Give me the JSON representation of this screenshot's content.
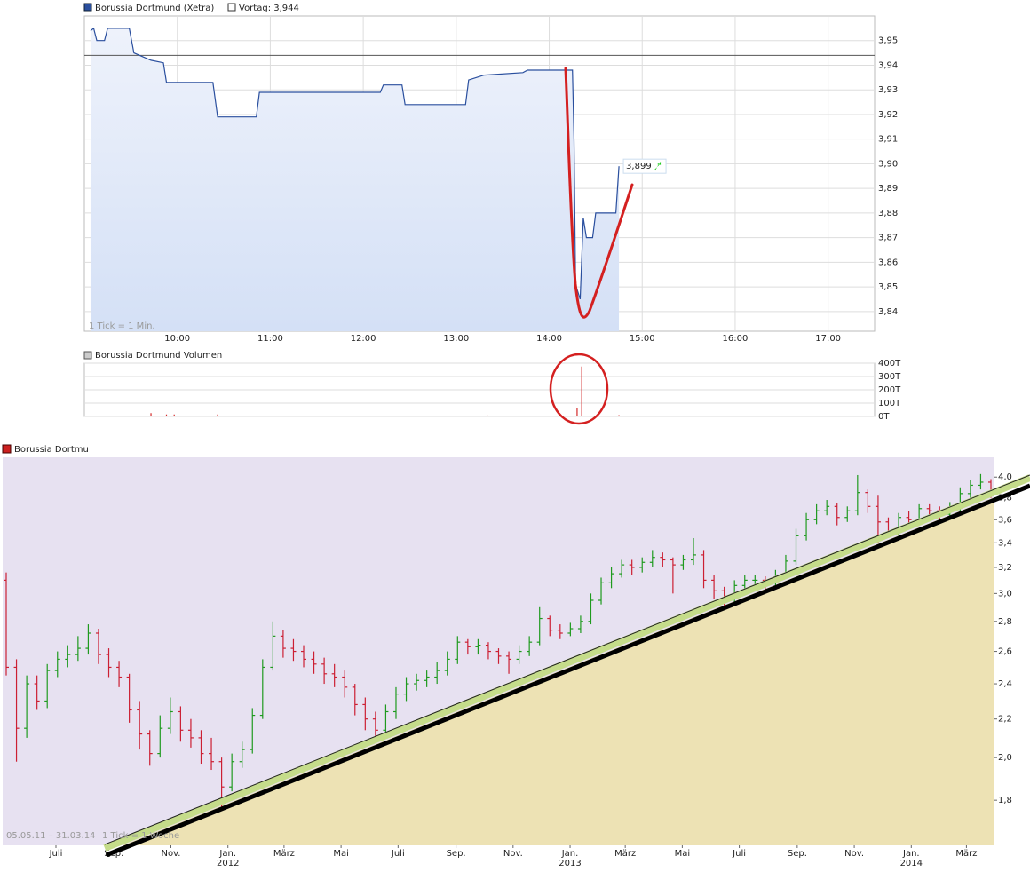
{
  "chart_data": [
    {
      "type": "line",
      "title": "Borussia Dortmund (Xetra)",
      "color": "#2a4f9e",
      "note": "1 Tick = 1 Min.",
      "reference_line": {
        "value": 3.944,
        "label": "Vortag: 3,944"
      },
      "x": [
        "09:04",
        "09:06",
        "09:08",
        "09:13",
        "09:15",
        "09:29",
        "09:32",
        "09:43",
        "09:51",
        "09:53",
        "10:23",
        "10:26",
        "10:51",
        "10:53",
        "12:11",
        "12:13",
        "12:25",
        "12:27",
        "13:06",
        "13:08",
        "13:18",
        "13:43",
        "13:46",
        "14:15",
        "14:16",
        "14:17",
        "14:20",
        "14:22",
        "14:24",
        "14:28",
        "14:30",
        "14:43",
        "14:45"
      ],
      "values": [
        3.954,
        3.955,
        3.95,
        3.95,
        3.955,
        3.955,
        3.945,
        3.942,
        3.941,
        3.933,
        3.933,
        3.919,
        3.919,
        3.929,
        3.929,
        3.932,
        3.932,
        3.924,
        3.924,
        3.934,
        3.936,
        3.937,
        3.938,
        3.938,
        3.909,
        3.851,
        3.845,
        3.878,
        3.87,
        3.87,
        3.88,
        3.88,
        3.899
      ],
      "value_labels": [
        null,
        null,
        null,
        null,
        null,
        null,
        null,
        null,
        null,
        null,
        null,
        null,
        null,
        null,
        null,
        null,
        null,
        null,
        null,
        null,
        null,
        null,
        null,
        null,
        null,
        null,
        null,
        null,
        null,
        null,
        null,
        null,
        "3,899"
      ],
      "xlim": [
        "09:00",
        "17:30"
      ],
      "xticks": [
        "10:00",
        "11:00",
        "12:00",
        "13:00",
        "14:00",
        "15:00",
        "16:00",
        "17:00"
      ],
      "ylim": [
        3.832,
        3.96
      ],
      "yticks": [
        {
          "value": 3.84,
          "label": "3,84"
        },
        {
          "value": 3.85,
          "label": "3,85"
        },
        {
          "value": 3.86,
          "label": "3,86"
        },
        {
          "value": 3.87,
          "label": "3,87"
        },
        {
          "value": 3.88,
          "label": "3,88"
        },
        {
          "value": 3.89,
          "label": "3,89"
        },
        {
          "value": 3.9,
          "label": "3,90"
        },
        {
          "value": 3.91,
          "label": "3,91"
        },
        {
          "value": 3.92,
          "label": "3,92"
        },
        {
          "value": 3.93,
          "label": "3,93"
        },
        {
          "value": 3.94,
          "label": "3,94"
        },
        {
          "value": 3.95,
          "label": "3,95"
        }
      ],
      "grid": true
    },
    {
      "type": "bar",
      "title": "Borussia Dortmund Volumen",
      "color": "#d42a2a",
      "x": [
        "09:02",
        "09:43",
        "09:53",
        "09:58",
        "10:26",
        "12:25",
        "13:20",
        "14:18",
        "14:21",
        "14:45"
      ],
      "values": [
        5000,
        25000,
        15000,
        15000,
        15000,
        5000,
        8000,
        60000,
        375000,
        10000
      ],
      "xlim": [
        "09:00",
        "17:30"
      ],
      "ylim": [
        0,
        400000
      ],
      "yticks": [
        {
          "value": 0,
          "label": "0T"
        },
        {
          "value": 100000,
          "label": "100T"
        },
        {
          "value": 200000,
          "label": "200T"
        },
        {
          "value": 300000,
          "label": "300T"
        },
        {
          "value": 400000,
          "label": "400T"
        }
      ],
      "grid": true
    },
    {
      "type": "ohlc",
      "title": "Borussia Dortmu",
      "period": "05.05.11 – 31.03.14",
      "tick_note": "1 Tick = 1 Woche",
      "up_color": "#1f9a1f",
      "down_color": "#cc1f33",
      "log_y": true,
      "xlim": [
        "2011-05-05",
        "2014-03-31"
      ],
      "xticks": [
        {
          "value": "2011-07-01",
          "label": "Juli"
        },
        {
          "value": "2011-09-01",
          "label": "Sep."
        },
        {
          "value": "2011-11-01",
          "label": "Nov."
        },
        {
          "value": "2012-01-01",
          "label": "Jan. 2012"
        },
        {
          "value": "2012-03-01",
          "label": "März"
        },
        {
          "value": "2012-05-01",
          "label": "Mai"
        },
        {
          "value": "2012-07-01",
          "label": "Juli"
        },
        {
          "value": "2012-09-01",
          "label": "Sep."
        },
        {
          "value": "2012-11-01",
          "label": "Nov."
        },
        {
          "value": "2013-01-01",
          "label": "Jan. 2013"
        },
        {
          "value": "2013-03-01",
          "label": "März"
        },
        {
          "value": "2013-05-01",
          "label": "Mai"
        },
        {
          "value": "2013-07-01",
          "label": "Juli"
        },
        {
          "value": "2013-09-01",
          "label": "Sep."
        },
        {
          "value": "2013-11-01",
          "label": "Nov."
        },
        {
          "value": "2014-01-01",
          "label": "Jan. 2014"
        },
        {
          "value": "2014-03-01",
          "label": "März"
        }
      ],
      "ylim": [
        1.61,
        4.2
      ],
      "yticks": [
        {
          "value": 1.8,
          "label": "1,8"
        },
        {
          "value": 2,
          "label": "2,0"
        },
        {
          "value": 2.2,
          "label": "2,2"
        },
        {
          "value": 2.4,
          "label": "2,4"
        },
        {
          "value": 2.6,
          "label": "2,6"
        },
        {
          "value": 2.8,
          "label": "2,8"
        },
        {
          "value": 3,
          "label": "3,0"
        },
        {
          "value": 3.2,
          "label": "3,2"
        },
        {
          "value": 3.4,
          "label": "3,4"
        },
        {
          "value": 3.6,
          "label": "3,6"
        },
        {
          "value": 3.8,
          "label": "3,8"
        },
        {
          "value": 4,
          "label": "4,0"
        }
      ],
      "values": [
        [
          3.1,
          3.16,
          2.45,
          2.5
        ],
        [
          2.5,
          2.55,
          1.98,
          2.15
        ],
        [
          2.15,
          2.45,
          2.1,
          2.4
        ],
        [
          2.4,
          2.45,
          2.25,
          2.3
        ],
        [
          2.3,
          2.52,
          2.26,
          2.48
        ],
        [
          2.48,
          2.6,
          2.44,
          2.55
        ],
        [
          2.55,
          2.64,
          2.5,
          2.58
        ],
        [
          2.58,
          2.7,
          2.54,
          2.62
        ],
        [
          2.62,
          2.78,
          2.58,
          2.72
        ],
        [
          2.72,
          2.75,
          2.52,
          2.58
        ],
        [
          2.58,
          2.62,
          2.44,
          2.5
        ],
        [
          2.5,
          2.54,
          2.38,
          2.44
        ],
        [
          2.44,
          2.46,
          2.18,
          2.25
        ],
        [
          2.25,
          2.3,
          2.04,
          2.12
        ],
        [
          2.12,
          2.14,
          1.96,
          2.02
        ],
        [
          2.02,
          2.22,
          2.0,
          2.15
        ],
        [
          2.15,
          2.32,
          2.12,
          2.24
        ],
        [
          2.24,
          2.27,
          2.08,
          2.14
        ],
        [
          2.14,
          2.2,
          2.05,
          2.1
        ],
        [
          2.1,
          2.14,
          1.97,
          2.02
        ],
        [
          2.02,
          2.1,
          1.94,
          1.98
        ],
        [
          1.98,
          2.0,
          1.76,
          1.86
        ],
        [
          1.86,
          2.02,
          1.84,
          1.98
        ],
        [
          1.98,
          2.08,
          1.95,
          2.04
        ],
        [
          2.04,
          2.26,
          2.02,
          2.22
        ],
        [
          2.22,
          2.55,
          2.2,
          2.5
        ],
        [
          2.5,
          2.8,
          2.48,
          2.7
        ],
        [
          2.7,
          2.74,
          2.56,
          2.62
        ],
        [
          2.62,
          2.68,
          2.54,
          2.6
        ],
        [
          2.6,
          2.64,
          2.5,
          2.55
        ],
        [
          2.55,
          2.6,
          2.46,
          2.52
        ],
        [
          2.52,
          2.56,
          2.4,
          2.46
        ],
        [
          2.46,
          2.52,
          2.38,
          2.44
        ],
        [
          2.44,
          2.48,
          2.32,
          2.38
        ],
        [
          2.38,
          2.4,
          2.22,
          2.28
        ],
        [
          2.28,
          2.32,
          2.14,
          2.2
        ],
        [
          2.2,
          2.24,
          2.1,
          2.14
        ],
        [
          2.14,
          2.28,
          2.12,
          2.24
        ],
        [
          2.24,
          2.38,
          2.2,
          2.34
        ],
        [
          2.34,
          2.44,
          2.3,
          2.4
        ],
        [
          2.4,
          2.46,
          2.36,
          2.42
        ],
        [
          2.42,
          2.48,
          2.38,
          2.44
        ],
        [
          2.44,
          2.53,
          2.4,
          2.48
        ],
        [
          2.48,
          2.6,
          2.45,
          2.55
        ],
        [
          2.55,
          2.7,
          2.52,
          2.66
        ],
        [
          2.66,
          2.68,
          2.58,
          2.63
        ],
        [
          2.63,
          2.68,
          2.58,
          2.64
        ],
        [
          2.64,
          2.66,
          2.55,
          2.6
        ],
        [
          2.6,
          2.62,
          2.52,
          2.57
        ],
        [
          2.57,
          2.6,
          2.46,
          2.55
        ],
        [
          2.55,
          2.64,
          2.52,
          2.6
        ],
        [
          2.6,
          2.7,
          2.57,
          2.66
        ],
        [
          2.66,
          2.9,
          2.64,
          2.82
        ],
        [
          2.82,
          2.84,
          2.7,
          2.74
        ],
        [
          2.74,
          2.78,
          2.68,
          2.72
        ],
        [
          2.72,
          2.79,
          2.7,
          2.75
        ],
        [
          2.75,
          2.84,
          2.72,
          2.8
        ],
        [
          2.8,
          3.0,
          2.78,
          2.95
        ],
        [
          2.95,
          3.12,
          2.92,
          3.08
        ],
        [
          3.08,
          3.2,
          3.04,
          3.15
        ],
        [
          3.15,
          3.26,
          3.12,
          3.22
        ],
        [
          3.22,
          3.26,
          3.14,
          3.2
        ],
        [
          3.2,
          3.28,
          3.16,
          3.24
        ],
        [
          3.24,
          3.34,
          3.2,
          3.28
        ],
        [
          3.28,
          3.32,
          3.2,
          3.26
        ],
        [
          3.26,
          3.28,
          3.0,
          3.22
        ],
        [
          3.22,
          3.3,
          3.18,
          3.26
        ],
        [
          3.26,
          3.44,
          3.22,
          3.3
        ],
        [
          3.3,
          3.34,
          3.04,
          3.1
        ],
        [
          3.1,
          3.14,
          2.96,
          3.02
        ],
        [
          3.02,
          3.05,
          2.9,
          2.98
        ],
        [
          2.98,
          3.1,
          2.94,
          3.06
        ],
        [
          3.06,
          3.14,
          3.02,
          3.1
        ],
        [
          3.1,
          3.14,
          3.04,
          3.1
        ],
        [
          3.1,
          3.13,
          3.02,
          3.08
        ],
        [
          3.08,
          3.18,
          3.06,
          3.14
        ],
        [
          3.14,
          3.3,
          3.12,
          3.25
        ],
        [
          3.25,
          3.52,
          3.22,
          3.46
        ],
        [
          3.46,
          3.66,
          3.42,
          3.6
        ],
        [
          3.6,
          3.74,
          3.56,
          3.68
        ],
        [
          3.68,
          3.78,
          3.64,
          3.72
        ],
        [
          3.72,
          3.75,
          3.55,
          3.62
        ],
        [
          3.62,
          3.72,
          3.58,
          3.68
        ],
        [
          3.68,
          4.02,
          3.64,
          3.85
        ],
        [
          3.85,
          3.88,
          3.66,
          3.72
        ],
        [
          3.72,
          3.82,
          3.4,
          3.58
        ],
        [
          3.58,
          3.62,
          3.44,
          3.5
        ],
        [
          3.5,
          3.66,
          3.46,
          3.62
        ],
        [
          3.62,
          3.68,
          3.54,
          3.6
        ],
        [
          3.6,
          3.74,
          3.56,
          3.7
        ],
        [
          3.7,
          3.74,
          3.62,
          3.68
        ],
        [
          3.68,
          3.72,
          3.58,
          3.65
        ],
        [
          3.65,
          3.76,
          3.6,
          3.7
        ],
        [
          3.7,
          3.9,
          3.66,
          3.84
        ],
        [
          3.84,
          3.97,
          3.8,
          3.92
        ],
        [
          3.92,
          4.03,
          3.88,
          3.95
        ],
        [
          3.95,
          3.98,
          3.8,
          3.86
        ]
      ]
    }
  ]
}
